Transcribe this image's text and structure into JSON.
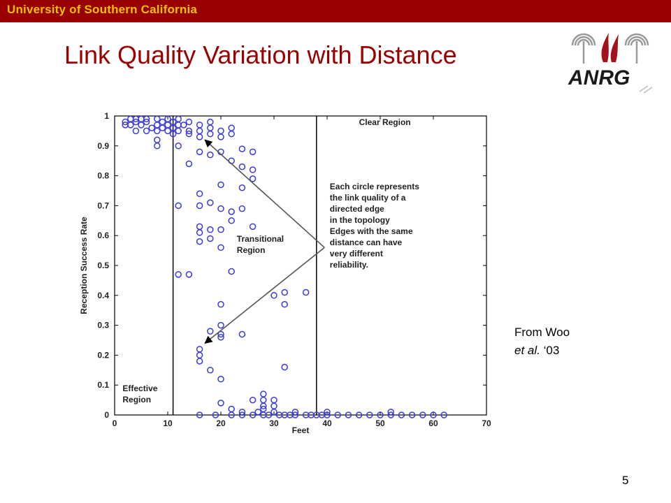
{
  "header": {
    "institution": "University of Southern California"
  },
  "slide": {
    "title": "Link Quality Variation with Distance",
    "credit_line1": "From Woo",
    "credit_line2_italic": "et al.",
    "credit_line2_rest": " ‘03",
    "page_number": "5"
  },
  "logo": {
    "text": "ANRG"
  },
  "chart_data": {
    "type": "scatter",
    "title": "",
    "xlabel": "Feet",
    "ylabel": "Reception Success Rate",
    "xlim": [
      0,
      70
    ],
    "ylim": [
      0,
      1
    ],
    "xticks": [
      "0",
      "10",
      "20",
      "30",
      "40",
      "50",
      "60",
      "70"
    ],
    "yticks": [
      "0",
      "0.1",
      "0.2",
      "0.3",
      "0.4",
      "0.5",
      "0.6",
      "0.7",
      "0.8",
      "0.9",
      "1"
    ],
    "marker_color": "#3a3adb",
    "region_boundaries_x": [
      11,
      38
    ],
    "region_labels": [
      {
        "text_lines": [
          "Clear Region"
        ],
        "x": 46,
        "y": 0.97
      },
      {
        "text_lines": [
          "Transitional",
          "Region"
        ],
        "x": 23,
        "y": 0.58
      },
      {
        "text_lines": [
          "Effective",
          "Region"
        ],
        "x": 1.5,
        "y": 0.08
      }
    ],
    "annotation": {
      "lines": [
        "Each circle represents",
        "the link quality of a",
        "directed edge",
        "in the topology",
        "",
        "Edges with the same",
        "distance can have",
        "very different",
        "reliability."
      ],
      "x": 40.5,
      "y": 0.755,
      "arrow_origin": [
        39.5,
        0.56
      ],
      "arrow_targets": [
        [
          17,
          0.92
        ],
        [
          17,
          0.24
        ]
      ]
    },
    "series": [
      {
        "points": [
          [
            2,
            0.98
          ],
          [
            2,
            0.97
          ],
          [
            3,
            0.99
          ],
          [
            3,
            0.97
          ],
          [
            4,
            0.99
          ],
          [
            4,
            0.98
          ],
          [
            4,
            0.95
          ],
          [
            5,
            0.99
          ],
          [
            5,
            0.97
          ],
          [
            6,
            0.99
          ],
          [
            6,
            0.98
          ],
          [
            6,
            0.95
          ],
          [
            7,
            0.96
          ],
          [
            8,
            0.99
          ],
          [
            8,
            0.97
          ],
          [
            8,
            0.95
          ],
          [
            8,
            0.92
          ],
          [
            8,
            0.9
          ],
          [
            9,
            0.98
          ],
          [
            9,
            0.96
          ],
          [
            10,
            0.99
          ],
          [
            10,
            0.97
          ],
          [
            10,
            0.95
          ],
          [
            11,
            0.98
          ],
          [
            11,
            0.96
          ],
          [
            11,
            0.94
          ],
          [
            12,
            0.99
          ],
          [
            12,
            0.97
          ],
          [
            12,
            0.95
          ],
          [
            12,
            0.9
          ],
          [
            13,
            0.97
          ],
          [
            14,
            0.98
          ],
          [
            14,
            0.95
          ],
          [
            14,
            0.94
          ],
          [
            14,
            0.84
          ],
          [
            16,
            0.97
          ],
          [
            16,
            0.95
          ],
          [
            16,
            0.93
          ],
          [
            16,
            0.88
          ],
          [
            18,
            0.98
          ],
          [
            18,
            0.96
          ],
          [
            18,
            0.94
          ],
          [
            18,
            0.87
          ],
          [
            20,
            0.95
          ],
          [
            20,
            0.93
          ],
          [
            20,
            0.88
          ],
          [
            22,
            0.96
          ],
          [
            22,
            0.94
          ],
          [
            22,
            0.85
          ],
          [
            24,
            0.89
          ],
          [
            24,
            0.83
          ],
          [
            26,
            0.88
          ],
          [
            26,
            0.82
          ],
          [
            26,
            0.79
          ],
          [
            12,
            0.7
          ],
          [
            16,
            0.74
          ],
          [
            16,
            0.7
          ],
          [
            16,
            0.63
          ],
          [
            16,
            0.61
          ],
          [
            16,
            0.58
          ],
          [
            18,
            0.71
          ],
          [
            18,
            0.62
          ],
          [
            18,
            0.59
          ],
          [
            20,
            0.77
          ],
          [
            20,
            0.69
          ],
          [
            20,
            0.62
          ],
          [
            20,
            0.56
          ],
          [
            22,
            0.68
          ],
          [
            22,
            0.65
          ],
          [
            22,
            0.48
          ],
          [
            24,
            0.76
          ],
          [
            24,
            0.69
          ],
          [
            26,
            0.63
          ],
          [
            12,
            0.47
          ],
          [
            14,
            0.47
          ],
          [
            30,
            0.4
          ],
          [
            32,
            0.41
          ],
          [
            32,
            0.37
          ],
          [
            36,
            0.41
          ],
          [
            20,
            0.37
          ],
          [
            18,
            0.28
          ],
          [
            20,
            0.3
          ],
          [
            20,
            0.27
          ],
          [
            20,
            0.26
          ],
          [
            24,
            0.27
          ],
          [
            16,
            0.22
          ],
          [
            16,
            0.2
          ],
          [
            16,
            0.18
          ],
          [
            18,
            0.15
          ],
          [
            20,
            0.12
          ],
          [
            32,
            0.16
          ],
          [
            20,
            0.04
          ],
          [
            22,
            0.02
          ],
          [
            28,
            0.07
          ],
          [
            28,
            0.05
          ],
          [
            28,
            0.03
          ],
          [
            28,
            0.02
          ],
          [
            26,
            0.05
          ],
          [
            30,
            0.05
          ],
          [
            30,
            0.03
          ],
          [
            16,
            0.0
          ],
          [
            19,
            0.0
          ],
          [
            22,
            0.0
          ],
          [
            24,
            0.01
          ],
          [
            24,
            0.0
          ],
          [
            26,
            0.0
          ],
          [
            27,
            0.01
          ],
          [
            28,
            0.0
          ],
          [
            29,
            0.0
          ],
          [
            30,
            0.01
          ],
          [
            31,
            0.0
          ],
          [
            32,
            0.0
          ],
          [
            33,
            0.0
          ],
          [
            34,
            0.01
          ],
          [
            34,
            0.0
          ],
          [
            36,
            0.0
          ],
          [
            37,
            0.0
          ],
          [
            38,
            0.0
          ],
          [
            39,
            0.0
          ],
          [
            40,
            0.01
          ],
          [
            40,
            0.0
          ],
          [
            42,
            0.0
          ],
          [
            44,
            0.0
          ],
          [
            46,
            0.0
          ],
          [
            48,
            0.0
          ],
          [
            50,
            0.0
          ],
          [
            52,
            0.01
          ],
          [
            52,
            0.0
          ],
          [
            54,
            0.0
          ],
          [
            56,
            0.0
          ],
          [
            58,
            0.0
          ],
          [
            60,
            0.0
          ],
          [
            62,
            0.0
          ]
        ]
      }
    ]
  }
}
